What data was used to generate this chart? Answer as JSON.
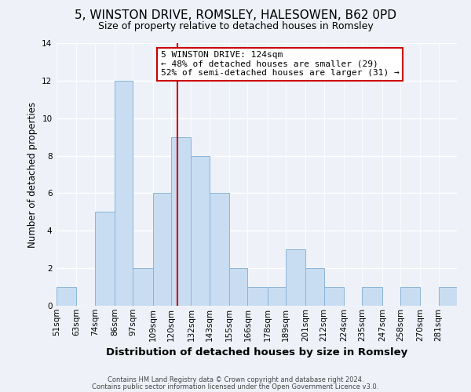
{
  "title": "5, WINSTON DRIVE, ROMSLEY, HALESOWEN, B62 0PD",
  "subtitle": "Size of property relative to detached houses in Romsley",
  "xlabel": "Distribution of detached houses by size in Romsley",
  "ylabel": "Number of detached properties",
  "bin_labels": [
    "51sqm",
    "63sqm",
    "74sqm",
    "86sqm",
    "97sqm",
    "109sqm",
    "120sqm",
    "132sqm",
    "143sqm",
    "155sqm",
    "166sqm",
    "178sqm",
    "189sqm",
    "201sqm",
    "212sqm",
    "224sqm",
    "235sqm",
    "247sqm",
    "258sqm",
    "270sqm",
    "281sqm"
  ],
  "bin_edges": [
    51,
    63,
    74,
    86,
    97,
    109,
    120,
    132,
    143,
    155,
    166,
    178,
    189,
    201,
    212,
    224,
    235,
    247,
    258,
    270,
    281,
    292
  ],
  "counts": [
    1,
    0,
    5,
    12,
    2,
    6,
    9,
    8,
    6,
    2,
    1,
    1,
    3,
    2,
    1,
    0,
    1,
    0,
    1,
    0,
    1
  ],
  "bar_color": "#c9ddf2",
  "bar_edge_color": "#8ab4d8",
  "reference_line_x": 124,
  "reference_line_color": "#cc0000",
  "annotation_title": "5 WINSTON DRIVE: 124sqm",
  "annotation_line1": "← 48% of detached houses are smaller (29)",
  "annotation_line2": "52% of semi-detached houses are larger (31) →",
  "annotation_box_edge": "#cc0000",
  "ylim": [
    0,
    14
  ],
  "yticks": [
    0,
    2,
    4,
    6,
    8,
    10,
    12,
    14
  ],
  "footer_line1": "Contains HM Land Registry data © Crown copyright and database right 2024.",
  "footer_line2": "Contains public sector information licensed under the Open Government Licence v3.0.",
  "bg_color": "#eef2f8",
  "title_fontsize": 11,
  "subtitle_fontsize": 9,
  "xlabel_fontsize": 9.5,
  "ylabel_fontsize": 8.5,
  "tick_fontsize": 7.5,
  "annotation_fontsize": 8,
  "footer_fontsize": 6
}
